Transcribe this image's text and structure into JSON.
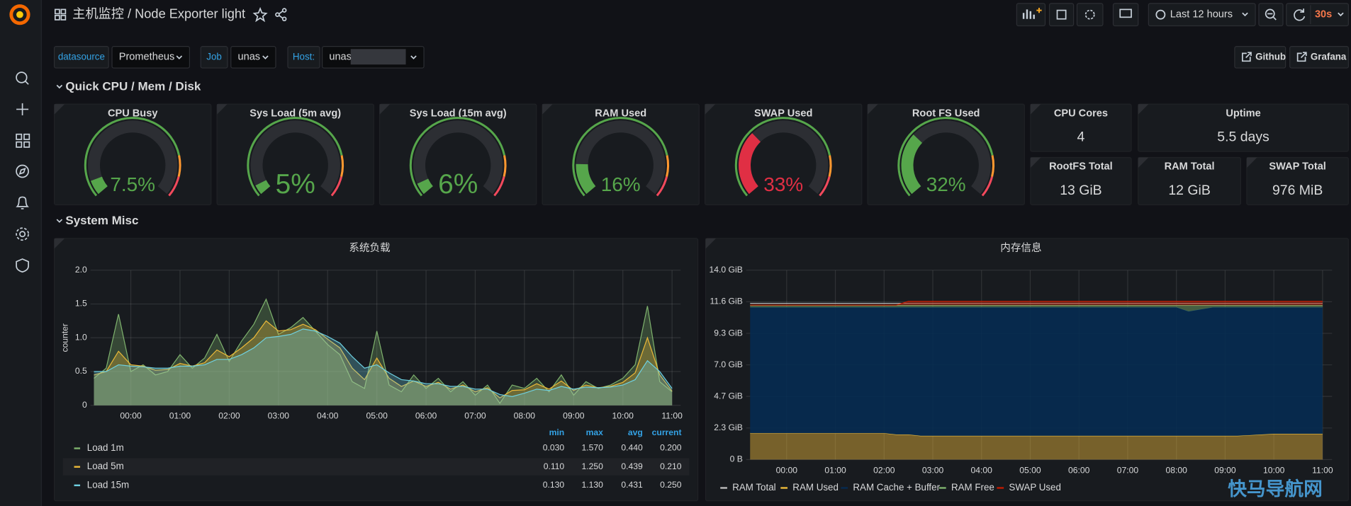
{
  "header": {
    "title": "主机监控 / Node Exporter light",
    "time_range": "Last 12 hours",
    "refresh": "30s"
  },
  "variables": [
    {
      "label": "datasource",
      "value": "Prometheus"
    },
    {
      "label": "Job",
      "value": "unas"
    },
    {
      "label": "Host:",
      "value": "unas"
    }
  ],
  "links": [
    "Github",
    "Grafana"
  ],
  "rows": [
    "Quick CPU / Mem / Disk",
    "System Misc"
  ],
  "gauge_range": [
    0,
    100
  ],
  "gauges": [
    {
      "title": "CPU Busy",
      "value": 7.5,
      "value_label": "7.5%",
      "color": "#56a64b"
    },
    {
      "title": "Sys Load (5m avg)",
      "value": 5,
      "value_label": "5%",
      "color": "#56a64b"
    },
    {
      "title": "Sys Load (15m avg)",
      "value": 6,
      "value_label": "6%",
      "color": "#56a64b"
    },
    {
      "title": "RAM Used",
      "value": 16,
      "value_label": "16%",
      "color": "#56a64b"
    },
    {
      "title": "SWAP Used",
      "value": 33,
      "value_label": "33%",
      "color": "#e02f44"
    },
    {
      "title": "Root FS Used",
      "value": 32,
      "value_label": "32%",
      "color": "#56a64b"
    }
  ],
  "stats": [
    {
      "title": "CPU Cores",
      "value": "4"
    },
    {
      "title": "Uptime",
      "value": "5.5 days"
    },
    {
      "title": "RootFS Total",
      "value": "13 GiB"
    },
    {
      "title": "RAM Total",
      "value": "12 GiB"
    },
    {
      "title": "SWAP Total",
      "value": "976 MiB"
    }
  ],
  "chart_data": [
    {
      "type": "line",
      "fill": true,
      "title": "系统负载",
      "y_label": "counter",
      "x": [
        "23:15",
        "23:30",
        "23:45",
        "00:00",
        "00:15",
        "00:30",
        "00:45",
        "01:00",
        "01:15",
        "01:30",
        "01:45",
        "02:00",
        "02:15",
        "02:30",
        "02:45",
        "03:00",
        "03:15",
        "03:30",
        "03:45",
        "04:00",
        "04:15",
        "04:30",
        "04:45",
        "05:00",
        "05:15",
        "05:30",
        "05:45",
        "06:00",
        "06:15",
        "06:30",
        "06:45",
        "07:00",
        "07:15",
        "07:30",
        "07:45",
        "08:00",
        "08:15",
        "08:30",
        "08:45",
        "09:00",
        "09:15",
        "09:30",
        "09:45",
        "10:00",
        "10:15",
        "10:30",
        "10:45",
        "11:00"
      ],
      "xticks": [
        "00:00",
        "01:00",
        "02:00",
        "03:00",
        "04:00",
        "05:00",
        "06:00",
        "07:00",
        "08:00",
        "09:00",
        "10:00",
        "11:00"
      ],
      "ylim": [
        0,
        2
      ],
      "yticks": [
        0,
        0.5,
        {
          "value": 1,
          "label": "1.0"
        },
        1.5,
        {
          "value": 2,
          "label": "2.0"
        }
      ],
      "grid": true,
      "legend_columns": [
        "min",
        "max",
        "avg",
        "current"
      ],
      "series": [
        {
          "name": "Load 1m",
          "color": "#7eb26d",
          "stats": [
            "0.030",
            "1.570",
            "0.440",
            "0.200"
          ],
          "values": [
            0.4,
            0.55,
            1.35,
            0.5,
            0.6,
            0.45,
            0.5,
            0.75,
            0.55,
            0.7,
            1.05,
            0.65,
            0.95,
            1.2,
            1.57,
            1.05,
            1.15,
            1.3,
            1.1,
            0.9,
            0.75,
            0.35,
            0.25,
            1.1,
            0.3,
            0.2,
            0.45,
            0.25,
            0.4,
            0.2,
            0.35,
            0.15,
            0.3,
            0.03,
            0.3,
            0.25,
            0.4,
            0.2,
            0.45,
            0.15,
            0.35,
            0.25,
            0.3,
            0.4,
            0.6,
            1.47,
            0.35,
            0.2
          ]
        },
        {
          "name": "Load 5m",
          "color": "#eab839",
          "stats": [
            "0.110",
            "1.250",
            "0.439",
            "0.210"
          ],
          "values": [
            0.45,
            0.5,
            0.8,
            0.6,
            0.58,
            0.52,
            0.53,
            0.62,
            0.58,
            0.63,
            0.82,
            0.72,
            0.85,
            1.0,
            1.25,
            1.1,
            1.12,
            1.2,
            1.12,
            0.98,
            0.85,
            0.55,
            0.38,
            0.7,
            0.4,
            0.28,
            0.36,
            0.28,
            0.34,
            0.24,
            0.3,
            0.2,
            0.26,
            0.11,
            0.22,
            0.23,
            0.32,
            0.24,
            0.36,
            0.22,
            0.3,
            0.26,
            0.28,
            0.34,
            0.48,
            1.0,
            0.45,
            0.21
          ]
        },
        {
          "name": "Load 15m",
          "color": "#6ed0e0",
          "stats": [
            "0.130",
            "1.130",
            "0.431",
            "0.250"
          ],
          "values": [
            0.5,
            0.5,
            0.6,
            0.58,
            0.57,
            0.55,
            0.55,
            0.58,
            0.58,
            0.6,
            0.68,
            0.68,
            0.75,
            0.85,
            1.0,
            1.02,
            1.05,
            1.13,
            1.1,
            1.02,
            0.92,
            0.72,
            0.55,
            0.6,
            0.48,
            0.38,
            0.36,
            0.32,
            0.32,
            0.28,
            0.28,
            0.24,
            0.24,
            0.16,
            0.13,
            0.18,
            0.24,
            0.22,
            0.28,
            0.24,
            0.27,
            0.26,
            0.27,
            0.3,
            0.38,
            0.66,
            0.5,
            0.25
          ]
        }
      ]
    },
    {
      "type": "area",
      "title": "内存信息",
      "x": [
        "23:15",
        "23:30",
        "23:45",
        "00:00",
        "00:15",
        "00:30",
        "00:45",
        "01:00",
        "01:15",
        "01:30",
        "01:45",
        "02:00",
        "02:15",
        "02:30",
        "02:45",
        "03:00",
        "03:15",
        "03:30",
        "03:45",
        "04:00",
        "04:15",
        "04:30",
        "04:45",
        "05:00",
        "05:15",
        "05:30",
        "05:45",
        "06:00",
        "06:15",
        "06:30",
        "06:45",
        "07:00",
        "07:15",
        "07:30",
        "07:45",
        "08:00",
        "08:15",
        "08:30",
        "08:45",
        "09:00",
        "09:15",
        "09:30",
        "09:45",
        "10:00",
        "10:15",
        "10:30",
        "10:45",
        "11:00"
      ],
      "xticks": [
        "00:00",
        "01:00",
        "02:00",
        "03:00",
        "04:00",
        "05:00",
        "06:00",
        "07:00",
        "08:00",
        "09:00",
        "10:00",
        "11:00"
      ],
      "ylim": [
        0,
        14
      ],
      "yticks": [
        {
          "value": 0,
          "label": "0 B"
        },
        {
          "value": 2.33,
          "label": "2.3 GiB"
        },
        {
          "value": 4.67,
          "label": "4.7 GiB"
        },
        {
          "value": 7,
          "label": "7.0 GiB"
        },
        {
          "value": 9.33,
          "label": "9.3 GiB"
        },
        {
          "value": 11.67,
          "label": "11.6 GiB"
        },
        {
          "value": 14,
          "label": "14.0 GiB"
        }
      ],
      "grid": true,
      "series": [
        {
          "name": "RAM Total",
          "color": "#bbbbbb",
          "stacked": false,
          "values": [
            11.55,
            11.55,
            11.55,
            11.55,
            11.55,
            11.55,
            11.55,
            11.55,
            11.55,
            11.55,
            11.55,
            11.55,
            11.55,
            11.55,
            11.55,
            11.55,
            11.55,
            11.55,
            11.55,
            11.55,
            11.55,
            11.55,
            11.55,
            11.55,
            11.55,
            11.55,
            11.55,
            11.55,
            11.55,
            11.55,
            11.55,
            11.55,
            11.55,
            11.55,
            11.55,
            11.55,
            11.55,
            11.55,
            11.55,
            11.55,
            11.55,
            11.55,
            11.55,
            11.55,
            11.55,
            11.55,
            11.55,
            11.55
          ]
        },
        {
          "name": "RAM Used",
          "color": "#eab839",
          "stacked": true,
          "values": [
            1.95,
            1.95,
            1.95,
            1.95,
            1.95,
            1.95,
            1.95,
            1.95,
            1.95,
            1.95,
            1.95,
            1.95,
            1.85,
            1.85,
            1.75,
            1.75,
            1.75,
            1.75,
            1.75,
            1.75,
            1.75,
            1.75,
            1.75,
            1.75,
            1.75,
            1.75,
            1.75,
            1.75,
            1.75,
            1.75,
            1.75,
            1.75,
            1.75,
            1.75,
            1.75,
            1.75,
            1.75,
            1.75,
            1.75,
            1.75,
            1.75,
            1.8,
            1.85,
            1.9,
            1.9,
            1.9,
            1.9,
            1.9
          ]
        },
        {
          "name": "RAM Cache + Buffer",
          "color": "#052b51",
          "stacked": true,
          "values": [
            9.3,
            9.3,
            9.3,
            9.3,
            9.3,
            9.3,
            9.3,
            9.3,
            9.3,
            9.3,
            9.3,
            9.3,
            9.4,
            9.4,
            9.5,
            9.5,
            9.5,
            9.5,
            9.5,
            9.5,
            9.5,
            9.5,
            9.5,
            9.5,
            9.5,
            9.5,
            9.5,
            9.5,
            9.5,
            9.5,
            9.5,
            9.5,
            9.5,
            9.5,
            9.5,
            9.5,
            9.2,
            9.35,
            9.5,
            9.5,
            9.5,
            9.45,
            9.4,
            9.35,
            9.35,
            9.35,
            9.35,
            9.35
          ]
        },
        {
          "name": "RAM Free",
          "color": "#7eb26d",
          "stacked": true,
          "values": [
            0.15,
            0.15,
            0.15,
            0.15,
            0.15,
            0.15,
            0.15,
            0.15,
            0.15,
            0.15,
            0.15,
            0.15,
            0.15,
            0.15,
            0.15,
            0.15,
            0.15,
            0.15,
            0.15,
            0.15,
            0.15,
            0.15,
            0.15,
            0.15,
            0.15,
            0.15,
            0.15,
            0.15,
            0.15,
            0.15,
            0.15,
            0.15,
            0.15,
            0.15,
            0.15,
            0.15,
            0.45,
            0.3,
            0.15,
            0.15,
            0.15,
            0.15,
            0.15,
            0.15,
            0.15,
            0.15,
            0.15,
            0.15
          ]
        },
        {
          "name": "SWAP Used",
          "color": "#bf1b00",
          "stacked": true,
          "values": [
            0.02,
            0.02,
            0.02,
            0.02,
            0.02,
            0.02,
            0.02,
            0.02,
            0.02,
            0.02,
            0.02,
            0.02,
            0.02,
            0.3,
            0.3,
            0.3,
            0.3,
            0.3,
            0.3,
            0.3,
            0.3,
            0.3,
            0.3,
            0.3,
            0.3,
            0.3,
            0.3,
            0.3,
            0.3,
            0.3,
            0.3,
            0.3,
            0.3,
            0.3,
            0.3,
            0.3,
            0.3,
            0.3,
            0.3,
            0.3,
            0.3,
            0.3,
            0.3,
            0.3,
            0.3,
            0.3,
            0.3,
            0.3
          ]
        }
      ]
    }
  ],
  "watermark": "快马导航网"
}
